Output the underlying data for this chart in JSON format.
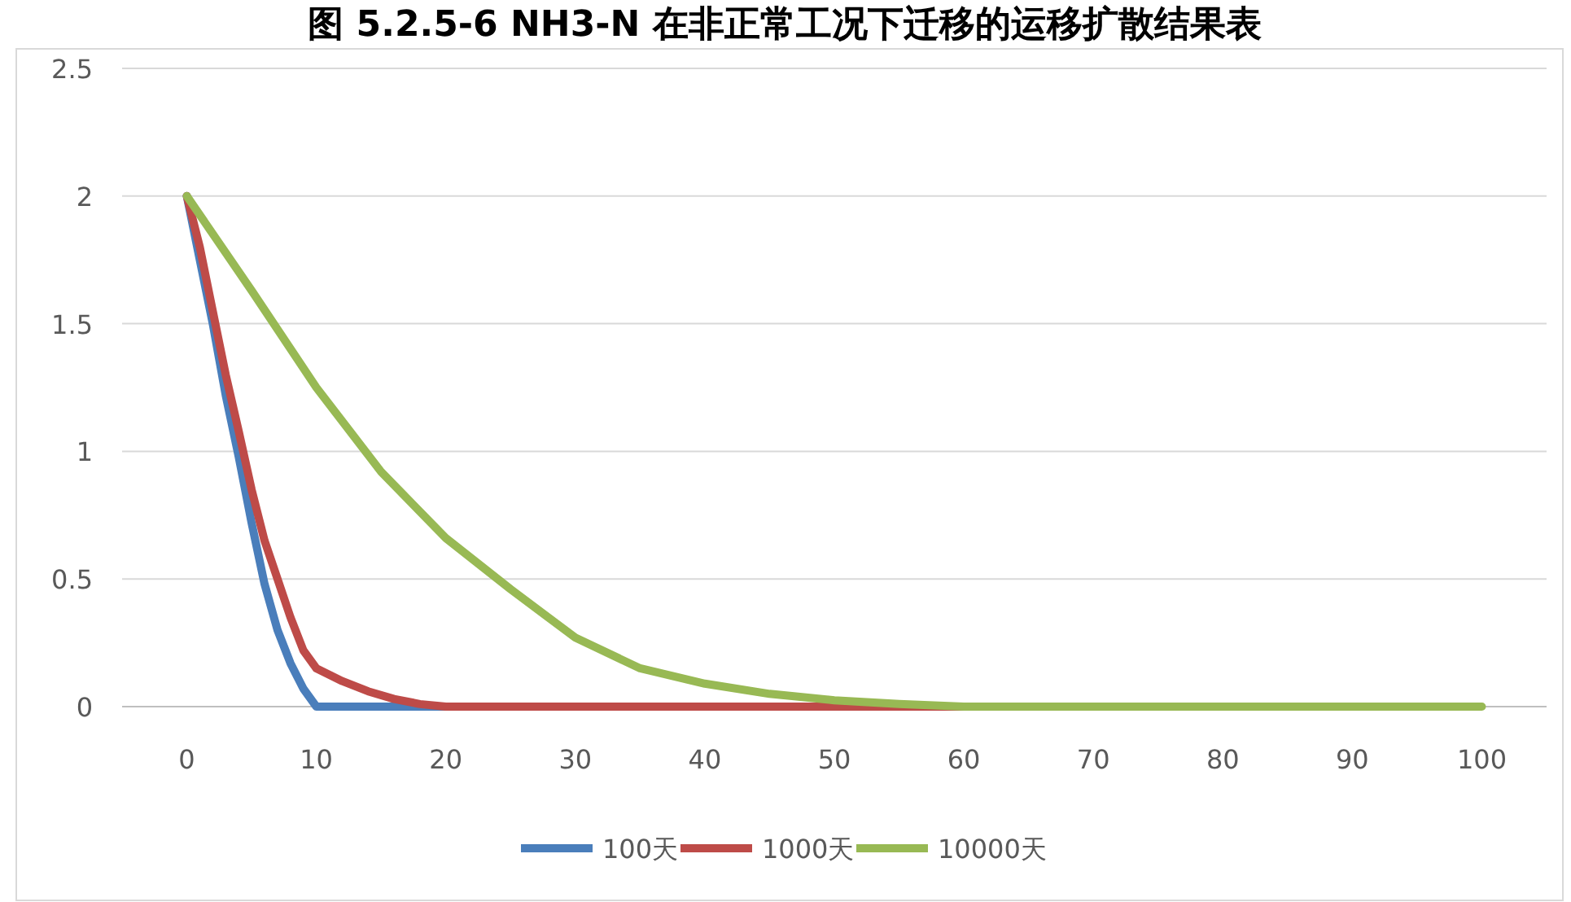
{
  "chart_data": {
    "type": "line",
    "title": "图 5.2.5-6 NH3-N 在非正常工况下迁移的运移扩散结果表",
    "xlim": [
      -5,
      105
    ],
    "xticks": [
      0,
      10,
      20,
      30,
      40,
      50,
      60,
      70,
      80,
      90,
      100
    ],
    "ylim": [
      0,
      2.5
    ],
    "yticks": [
      0,
      0.5,
      1,
      1.5,
      2,
      2.5
    ],
    "grid": "y",
    "legend": "bottom",
    "marker": "none",
    "line_style": "solid",
    "series": [
      {
        "name": "100天",
        "color": "#4a7ebb",
        "x": [
          0,
          1,
          2,
          3,
          4,
          5,
          6,
          7,
          8,
          9,
          10,
          20,
          30
        ],
        "values": [
          2,
          1.75,
          1.5,
          1.22,
          0.98,
          0.72,
          0.48,
          0.3,
          0.17,
          0.07,
          0,
          0,
          0
        ]
      },
      {
        "name": "1000天",
        "color": "#be4b48",
        "x": [
          0,
          1,
          2,
          3,
          4,
          5,
          6,
          7,
          8,
          9,
          10,
          12,
          14,
          16,
          18,
          20,
          30,
          40,
          50,
          60
        ],
        "values": [
          2,
          1.8,
          1.55,
          1.3,
          1.08,
          0.85,
          0.65,
          0.5,
          0.35,
          0.22,
          0.15,
          0.1,
          0.06,
          0.03,
          0.01,
          0,
          0,
          0,
          0,
          0
        ]
      },
      {
        "name": "10000天",
        "color": "#98b954",
        "x": [
          0,
          5,
          10,
          15,
          20,
          25,
          30,
          35,
          40,
          45,
          50,
          55,
          60,
          70,
          80,
          90,
          100
        ],
        "values": [
          2,
          1.63,
          1.25,
          0.92,
          0.66,
          0.46,
          0.27,
          0.15,
          0.09,
          0.05,
          0.025,
          0.01,
          0,
          0,
          0,
          0,
          0
        ]
      }
    ]
  }
}
